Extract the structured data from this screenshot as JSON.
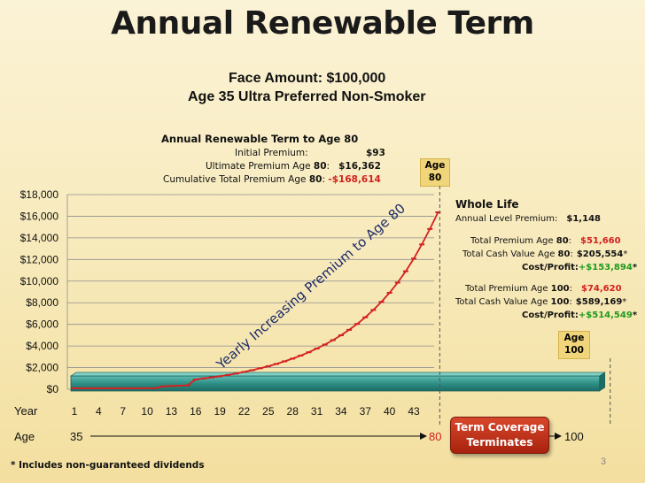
{
  "title": "Annual Renewable Term",
  "subtitle": {
    "line1": "Face Amount: $100,000",
    "line2": "Age 35 Ultra Preferred Non-Smoker"
  },
  "art_box": {
    "heading": "Annual Renewable Term to Age 80",
    "initial_label": "Initial Premium:",
    "initial_value": "$93",
    "ultimate_label": "Ultimate Premium Age ",
    "ultimate_age": "80",
    "ultimate_colon": ":",
    "ultimate_value": "$16,362",
    "cum_label": "Cumulative Total Premium Age ",
    "cum_age": "80",
    "cum_colon": ": ",
    "cum_value": "-$168,614"
  },
  "age80_badge": {
    "line1": "Age",
    "line2": "80"
  },
  "age100_badge": {
    "line1": "Age",
    "line2": "100"
  },
  "whole_life": {
    "heading": "Whole Life",
    "annual_label": "Annual Level Premium:",
    "annual_value": "$1,148",
    "tp80_label": "Total Premium Age ",
    "tp80_age": "80",
    "tp80_colon": ":",
    "tp80_value": "$51,660",
    "tcv80_label": "Total Cash Value Age ",
    "tcv80_age": "80",
    "tcv80_colon": ":",
    "tcv80_value": "$205,554",
    "tcv80_star": "*",
    "cp80_label": "Cost/Profit",
    "cp80_colon": ":",
    "cp80_value": "+$153,894",
    "cp80_star": "*",
    "tp100_label": "Total Premium Age ",
    "tp100_age": "100",
    "tp100_colon": ":",
    "tp100_value": "$74,620",
    "tcv100_label": "Total Cash Value Age ",
    "tcv100_age": "100",
    "tcv100_colon": ":",
    "tcv100_value": "$589,169",
    "tcv100_star": "*",
    "cp100_label": "Cost/Profit",
    "cp100_colon": ":",
    "cp100_value": "+$514,549",
    "cp100_star": "*"
  },
  "curve_label": "Yearly Increasing Premium to Age 80",
  "year_label": "Year",
  "age_label": "Age",
  "age_start": "35",
  "age_80": "80",
  "age_100": "100",
  "term_button": {
    "line1": "Term Coverage",
    "line2": "Terminates"
  },
  "footnote": "* Includes non-guaranteed dividends",
  "page_number": "3",
  "colors": {
    "term_line": "#d42020",
    "whole_life_bar": "#2e8f86",
    "accent_red": "#d42020",
    "accent_green": "#1d9a1d"
  },
  "chart_data": {
    "type": "line",
    "title": "Annual Renewable Term",
    "xlabel": "Year",
    "ylabel": "",
    "ylim": [
      0,
      18000
    ],
    "yticks": [
      "$18,000",
      "$16,000",
      "$14,000",
      "$12,000",
      "$10,000",
      "$8,000",
      "$6,000",
      "$4,000",
      "$2,000",
      "$0"
    ],
    "ytick_values": [
      18000,
      16000,
      14000,
      12000,
      10000,
      8000,
      6000,
      4000,
      2000,
      0
    ],
    "xticks": [
      "1",
      "4",
      "7",
      "10",
      "13",
      "16",
      "19",
      "22",
      "25",
      "28",
      "31",
      "34",
      "37",
      "40",
      "43"
    ],
    "xtick_values": [
      1,
      4,
      7,
      10,
      13,
      16,
      19,
      22,
      25,
      28,
      31,
      34,
      37,
      40,
      43
    ],
    "xlim": [
      1,
      66
    ],
    "series": [
      {
        "name": "Annual Renewable Term to Age 80",
        "x": [
          1,
          2,
          3,
          4,
          5,
          6,
          7,
          8,
          9,
          10,
          11,
          12,
          13,
          14,
          15,
          16,
          17,
          18,
          19,
          20,
          21,
          22,
          23,
          24,
          25,
          26,
          27,
          28,
          29,
          30,
          31,
          32,
          33,
          34,
          35,
          36,
          37,
          38,
          39,
          40,
          41,
          42,
          43,
          44,
          45,
          46
        ],
        "values": [
          93,
          93,
          93,
          93,
          93,
          93,
          93,
          93,
          93,
          93,
          93,
          270,
          300,
          330,
          360,
          900,
          1000,
          1100,
          1200,
          1320,
          1450,
          1600,
          1760,
          1940,
          2130,
          2340,
          2580,
          2830,
          3110,
          3420,
          3760,
          4130,
          4540,
          4990,
          5490,
          6040,
          6650,
          7330,
          8080,
          8920,
          9860,
          10910,
          12080,
          13390,
          14820,
          16362
        ]
      },
      {
        "name": "Whole Life Annual Level Premium",
        "x": [
          1,
          66
        ],
        "values": [
          1148,
          1148
        ]
      }
    ]
  }
}
